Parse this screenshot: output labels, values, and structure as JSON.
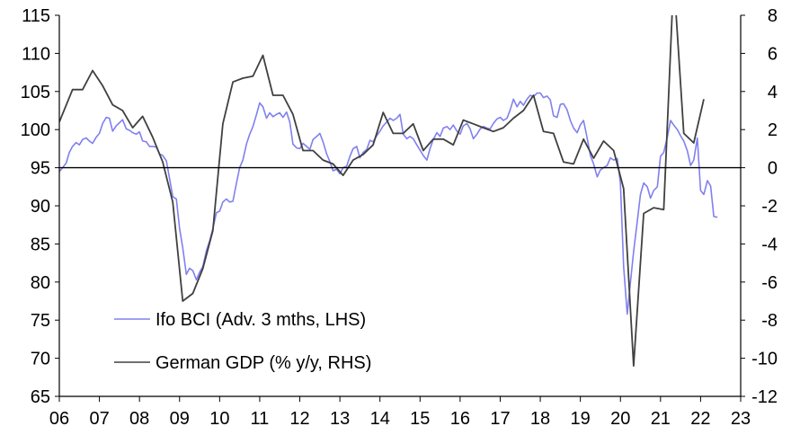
{
  "chart_data": {
    "type": "line",
    "title": "",
    "xlabel": "",
    "ylabel": "",
    "x_ticks": [
      "06",
      "07",
      "08",
      "09",
      "10",
      "11",
      "12",
      "13",
      "14",
      "15",
      "16",
      "17",
      "18",
      "19",
      "20",
      "21",
      "22",
      "23"
    ],
    "x_range": [
      2006.0,
      2023.0
    ],
    "left_axis": {
      "ticks": [
        "115",
        "110",
        "105",
        "100",
        "95",
        "90",
        "85",
        "80",
        "75",
        "70",
        "65"
      ],
      "ylim": [
        65,
        115
      ]
    },
    "right_axis": {
      "ticks": [
        "8",
        "6",
        "4",
        "2",
        "0",
        "-2",
        "-4",
        "-6",
        "-8",
        "-10",
        "-12"
      ],
      "ylim": [
        -12,
        8
      ]
    },
    "zero_line_right": 0,
    "legend_position": "bottom-left",
    "series": [
      {
        "name": "Ifo BCI (Adv. 3 mths, LHS)",
        "axis": "left",
        "color": "#8080f0",
        "points": [
          [
            2006.0,
            94.5
          ],
          [
            2006.08,
            95.0
          ],
          [
            2006.17,
            95.6
          ],
          [
            2006.25,
            97.0
          ],
          [
            2006.33,
            97.8
          ],
          [
            2006.42,
            98.3
          ],
          [
            2006.5,
            98.0
          ],
          [
            2006.58,
            98.7
          ],
          [
            2006.67,
            98.9
          ],
          [
            2006.75,
            98.5
          ],
          [
            2006.83,
            98.2
          ],
          [
            2006.92,
            99.0
          ],
          [
            2007.0,
            99.5
          ],
          [
            2007.08,
            100.8
          ],
          [
            2007.17,
            101.6
          ],
          [
            2007.25,
            101.5
          ],
          [
            2007.33,
            99.8
          ],
          [
            2007.42,
            100.5
          ],
          [
            2007.5,
            100.9
          ],
          [
            2007.58,
            101.3
          ],
          [
            2007.67,
            100.1
          ],
          [
            2007.75,
            99.9
          ],
          [
            2007.83,
            99.6
          ],
          [
            2007.92,
            99.4
          ],
          [
            2008.0,
            99.7
          ],
          [
            2008.08,
            98.5
          ],
          [
            2008.17,
            98.4
          ],
          [
            2008.25,
            97.8
          ],
          [
            2008.33,
            97.8
          ],
          [
            2008.42,
            97.7
          ],
          [
            2008.5,
            96.8
          ],
          [
            2008.58,
            96.6
          ],
          [
            2008.67,
            95.9
          ],
          [
            2008.75,
            93.6
          ],
          [
            2008.83,
            91.2
          ],
          [
            2008.92,
            90.9
          ],
          [
            2009.0,
            87.0
          ],
          [
            2009.08,
            84.5
          ],
          [
            2009.17,
            81.0
          ],
          [
            2009.25,
            81.8
          ],
          [
            2009.33,
            81.5
          ],
          [
            2009.42,
            80.3
          ],
          [
            2009.5,
            81.3
          ],
          [
            2009.58,
            82.0
          ],
          [
            2009.67,
            84.1
          ],
          [
            2009.75,
            85.4
          ],
          [
            2009.83,
            87.0
          ],
          [
            2009.92,
            89.1
          ],
          [
            2010.0,
            89.3
          ],
          [
            2010.08,
            90.5
          ],
          [
            2010.17,
            90.9
          ],
          [
            2010.25,
            90.5
          ],
          [
            2010.33,
            90.6
          ],
          [
            2010.42,
            93.0
          ],
          [
            2010.5,
            95.0
          ],
          [
            2010.58,
            96.0
          ],
          [
            2010.67,
            98.1
          ],
          [
            2010.75,
            99.4
          ],
          [
            2010.83,
            100.4
          ],
          [
            2010.92,
            102.0
          ],
          [
            2011.0,
            103.5
          ],
          [
            2011.08,
            103.0
          ],
          [
            2011.17,
            101.5
          ],
          [
            2011.25,
            102.2
          ],
          [
            2011.33,
            101.7
          ],
          [
            2011.42,
            102.0
          ],
          [
            2011.5,
            102.2
          ],
          [
            2011.58,
            101.6
          ],
          [
            2011.67,
            102.3
          ],
          [
            2011.75,
            101.0
          ],
          [
            2011.83,
            98.1
          ],
          [
            2011.92,
            97.6
          ],
          [
            2012.0,
            97.5
          ],
          [
            2012.08,
            98.2
          ],
          [
            2012.17,
            97.8
          ],
          [
            2012.25,
            97.4
          ],
          [
            2012.33,
            98.7
          ],
          [
            2012.42,
            99.1
          ],
          [
            2012.5,
            99.5
          ],
          [
            2012.58,
            98.4
          ],
          [
            2012.67,
            96.8
          ],
          [
            2012.75,
            95.8
          ],
          [
            2012.83,
            94.6
          ],
          [
            2012.92,
            94.8
          ],
          [
            2013.0,
            94.2
          ],
          [
            2013.08,
            95.0
          ],
          [
            2013.17,
            95.2
          ],
          [
            2013.25,
            96.5
          ],
          [
            2013.33,
            97.5
          ],
          [
            2013.42,
            97.8
          ],
          [
            2013.5,
            96.3
          ],
          [
            2013.58,
            97.0
          ],
          [
            2013.67,
            97.4
          ],
          [
            2013.75,
            98.6
          ],
          [
            2013.83,
            98.4
          ],
          [
            2013.92,
            99.2
          ],
          [
            2014.0,
            99.8
          ],
          [
            2014.08,
            100.5
          ],
          [
            2014.17,
            101.0
          ],
          [
            2014.25,
            101.5
          ],
          [
            2014.33,
            101.2
          ],
          [
            2014.42,
            101.5
          ],
          [
            2014.5,
            102.0
          ],
          [
            2014.58,
            99.4
          ],
          [
            2014.67,
            98.8
          ],
          [
            2014.75,
            99.1
          ],
          [
            2014.83,
            98.8
          ],
          [
            2014.92,
            98.0
          ],
          [
            2015.0,
            97.3
          ],
          [
            2015.08,
            96.6
          ],
          [
            2015.17,
            96.0
          ],
          [
            2015.25,
            97.5
          ],
          [
            2015.33,
            98.7
          ],
          [
            2015.42,
            99.6
          ],
          [
            2015.5,
            99.1
          ],
          [
            2015.58,
            100.2
          ],
          [
            2015.67,
            100.4
          ],
          [
            2015.75,
            100.0
          ],
          [
            2015.83,
            100.6
          ],
          [
            2015.92,
            99.8
          ],
          [
            2016.0,
            99.4
          ],
          [
            2016.08,
            100.5
          ],
          [
            2016.17,
            100.8
          ],
          [
            2016.25,
            100.1
          ],
          [
            2016.33,
            98.8
          ],
          [
            2016.42,
            99.4
          ],
          [
            2016.5,
            100.1
          ],
          [
            2016.58,
            100.4
          ],
          [
            2016.67,
            100.2
          ],
          [
            2016.75,
            100.1
          ],
          [
            2016.83,
            100.8
          ],
          [
            2016.92,
            101.4
          ],
          [
            2017.0,
            101.6
          ],
          [
            2017.08,
            101.2
          ],
          [
            2017.17,
            101.5
          ],
          [
            2017.25,
            102.6
          ],
          [
            2017.33,
            104.0
          ],
          [
            2017.42,
            103.0
          ],
          [
            2017.5,
            103.7
          ],
          [
            2017.58,
            103.2
          ],
          [
            2017.67,
            104.0
          ],
          [
            2017.75,
            104.5
          ],
          [
            2017.83,
            104.3
          ],
          [
            2017.92,
            104.8
          ],
          [
            2018.0,
            104.8
          ],
          [
            2018.08,
            104.2
          ],
          [
            2018.17,
            104.4
          ],
          [
            2018.25,
            103.9
          ],
          [
            2018.33,
            101.8
          ],
          [
            2018.42,
            101.6
          ],
          [
            2018.5,
            103.3
          ],
          [
            2018.58,
            103.4
          ],
          [
            2018.67,
            102.6
          ],
          [
            2018.75,
            101.2
          ],
          [
            2018.83,
            100.2
          ],
          [
            2018.92,
            99.6
          ],
          [
            2019.0,
            100.6
          ],
          [
            2019.08,
            101.2
          ],
          [
            2019.17,
            98.9
          ],
          [
            2019.25,
            96.6
          ],
          [
            2019.33,
            95.5
          ],
          [
            2019.42,
            93.8
          ],
          [
            2019.5,
            94.7
          ],
          [
            2019.58,
            95.0
          ],
          [
            2019.67,
            95.3
          ],
          [
            2019.75,
            96.3
          ],
          [
            2019.83,
            96.0
          ],
          [
            2019.92,
            96.2
          ],
          [
            2020.0,
            93.0
          ],
          [
            2020.08,
            82.0
          ],
          [
            2020.17,
            75.8
          ],
          [
            2020.25,
            80.0
          ],
          [
            2020.33,
            84.0
          ],
          [
            2020.42,
            88.0
          ],
          [
            2020.5,
            91.5
          ],
          [
            2020.58,
            93.0
          ],
          [
            2020.67,
            92.5
          ],
          [
            2020.75,
            91.0
          ],
          [
            2020.83,
            92.0
          ],
          [
            2020.92,
            92.5
          ],
          [
            2021.0,
            96.5
          ],
          [
            2021.08,
            97.0
          ],
          [
            2021.17,
            99.0
          ],
          [
            2021.25,
            101.2
          ],
          [
            2021.33,
            100.6
          ],
          [
            2021.42,
            100.0
          ],
          [
            2021.5,
            99.2
          ],
          [
            2021.58,
            98.5
          ],
          [
            2021.67,
            97.2
          ],
          [
            2021.75,
            95.3
          ],
          [
            2021.83,
            96.0
          ],
          [
            2021.92,
            98.9
          ],
          [
            2022.0,
            92.0
          ],
          [
            2022.08,
            91.5
          ],
          [
            2022.17,
            93.3
          ],
          [
            2022.25,
            92.6
          ],
          [
            2022.33,
            88.6
          ],
          [
            2022.42,
            88.5
          ]
        ]
      },
      {
        "name": "German GDP (% y/y, RHS)",
        "axis": "right",
        "color": "#404040",
        "points": [
          [
            2006.0,
            2.4
          ],
          [
            2006.33,
            4.1
          ],
          [
            2006.58,
            4.1
          ],
          [
            2006.83,
            5.1
          ],
          [
            2007.08,
            4.3
          ],
          [
            2007.33,
            3.3
          ],
          [
            2007.58,
            3.0
          ],
          [
            2007.83,
            2.1
          ],
          [
            2008.08,
            2.7
          ],
          [
            2008.33,
            1.6
          ],
          [
            2008.58,
            0.3
          ],
          [
            2008.83,
            -1.8
          ],
          [
            2009.08,
            -7.0
          ],
          [
            2009.33,
            -6.6
          ],
          [
            2009.58,
            -5.3
          ],
          [
            2009.83,
            -3.3
          ],
          [
            2010.08,
            2.3
          ],
          [
            2010.33,
            4.5
          ],
          [
            2010.58,
            4.7
          ],
          [
            2010.83,
            4.8
          ],
          [
            2011.08,
            5.9
          ],
          [
            2011.33,
            3.8
          ],
          [
            2011.58,
            3.8
          ],
          [
            2011.83,
            2.8
          ],
          [
            2012.08,
            0.9
          ],
          [
            2012.33,
            0.9
          ],
          [
            2012.58,
            0.4
          ],
          [
            2012.83,
            0.2
          ],
          [
            2013.08,
            -0.4
          ],
          [
            2013.33,
            0.4
          ],
          [
            2013.58,
            0.7
          ],
          [
            2013.83,
            1.2
          ],
          [
            2014.08,
            2.9
          ],
          [
            2014.33,
            1.8
          ],
          [
            2014.58,
            1.8
          ],
          [
            2014.83,
            2.3
          ],
          [
            2015.08,
            0.9
          ],
          [
            2015.33,
            1.5
          ],
          [
            2015.58,
            1.5
          ],
          [
            2015.83,
            1.2
          ],
          [
            2016.08,
            2.5
          ],
          [
            2016.33,
            2.3
          ],
          [
            2016.58,
            2.1
          ],
          [
            2016.83,
            1.9
          ],
          [
            2017.08,
            2.1
          ],
          [
            2017.33,
            2.6
          ],
          [
            2017.58,
            3.0
          ],
          [
            2017.83,
            3.8
          ],
          [
            2018.08,
            1.9
          ],
          [
            2018.33,
            1.8
          ],
          [
            2018.58,
            0.3
          ],
          [
            2018.83,
            0.2
          ],
          [
            2019.08,
            1.5
          ],
          [
            2019.33,
            0.5
          ],
          [
            2019.58,
            1.4
          ],
          [
            2019.83,
            0.9
          ],
          [
            2020.08,
            -1.1
          ],
          [
            2020.33,
            -10.4
          ],
          [
            2020.58,
            -2.4
          ],
          [
            2020.83,
            -2.1
          ],
          [
            2021.08,
            -2.2
          ],
          [
            2021.33,
            10.0
          ],
          [
            2021.58,
            1.8
          ],
          [
            2021.83,
            1.3
          ],
          [
            2022.08,
            3.6
          ]
        ]
      }
    ]
  }
}
